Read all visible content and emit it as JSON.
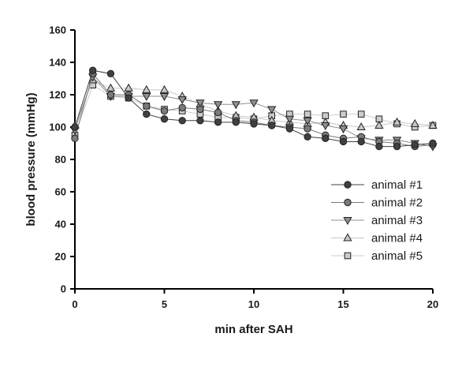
{
  "chart_data": {
    "type": "line",
    "title": "",
    "xlabel": "min after SAH",
    "ylabel": "blood pressure (mmHg)",
    "xlim": [
      0,
      20
    ],
    "ylim": [
      0,
      160
    ],
    "xticks": [
      0,
      5,
      10,
      15,
      20
    ],
    "yticks": [
      0,
      20,
      40,
      60,
      80,
      100,
      120,
      140,
      160
    ],
    "legend_position": "right",
    "grid": false,
    "x": [
      0,
      1,
      2,
      3,
      4,
      5,
      6,
      7,
      8,
      9,
      10,
      11,
      12,
      13,
      14,
      15,
      16,
      17,
      18,
      19,
      20
    ],
    "series": [
      {
        "name": "animal #1",
        "marker": "circle",
        "color": "#404040",
        "values": [
          100,
          135,
          133,
          118,
          108,
          105,
          104,
          104,
          103,
          103,
          102,
          101,
          99,
          94,
          93,
          91,
          91,
          88,
          88,
          89,
          90
        ]
      },
      {
        "name": "animal #2",
        "marker": "circle",
        "color": "#7a7a7a",
        "values": [
          93,
          133,
          120,
          120,
          113,
          110,
          112,
          111,
          109,
          104,
          103,
          101,
          100,
          99,
          95,
          93,
          94,
          91,
          90,
          88,
          89
        ]
      },
      {
        "name": "animal #3",
        "marker": "triangle-down",
        "color": "#909090",
        "values": [
          98,
          131,
          119,
          119,
          119,
          119,
          117,
          115,
          114,
          114,
          115,
          111,
          105,
          104,
          101,
          99,
          93,
          92,
          92,
          90,
          88
        ]
      },
      {
        "name": "animal #4",
        "marker": "triangle-up",
        "color": "#c8c8c8",
        "values": [
          101,
          129,
          124,
          124,
          123,
          123,
          119,
          114,
          110,
          107,
          106,
          104,
          103,
          102,
          103,
          101,
          100,
          101,
          103,
          102,
          101
        ]
      },
      {
        "name": "animal #5",
        "marker": "square",
        "color": "#cccccc",
        "values": [
          95,
          126,
          119,
          118,
          113,
          111,
          110,
          108,
          106,
          106,
          105,
          107,
          108,
          108,
          107,
          108,
          108,
          105,
          102,
          100,
          101
        ]
      }
    ]
  }
}
